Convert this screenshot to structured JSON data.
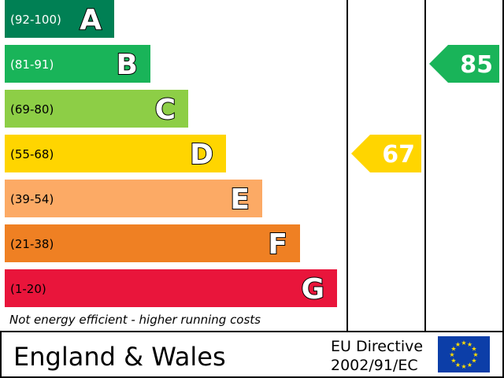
{
  "chart_data": {
    "type": "bar",
    "bands": [
      {
        "letter": "A",
        "range": "(92-100)",
        "color": "#008054",
        "range_text_color": "#ffffff"
      },
      {
        "letter": "B",
        "range": "(81-91)",
        "color": "#19b459",
        "range_text_color": "#ffffff"
      },
      {
        "letter": "C",
        "range": "(69-80)",
        "color": "#8dce46",
        "range_text_color": "#000000"
      },
      {
        "letter": "D",
        "range": "(55-68)",
        "color": "#ffd500",
        "range_text_color": "#000000"
      },
      {
        "letter": "E",
        "range": "(39-54)",
        "color": "#fcaa65",
        "range_text_color": "#000000"
      },
      {
        "letter": "F",
        "range": "(21-38)",
        "color": "#ef8023",
        "range_text_color": "#000000"
      },
      {
        "letter": "G",
        "range": "(1-20)",
        "color": "#e9153b",
        "range_text_color": "#000000"
      }
    ],
    "ratings": [
      {
        "value": 67,
        "band": "D",
        "color": "#ffd500",
        "column": "current"
      },
      {
        "value": 85,
        "band": "B",
        "color": "#19b459",
        "column": "potential"
      }
    ],
    "footnote": "Not energy efficient - higher running costs",
    "region": "England & Wales",
    "directive_line1": "EU Directive",
    "directive_line2": "2002/91/EC",
    "flag_color": "#0c3ea8",
    "star_color": "#ffde00"
  }
}
